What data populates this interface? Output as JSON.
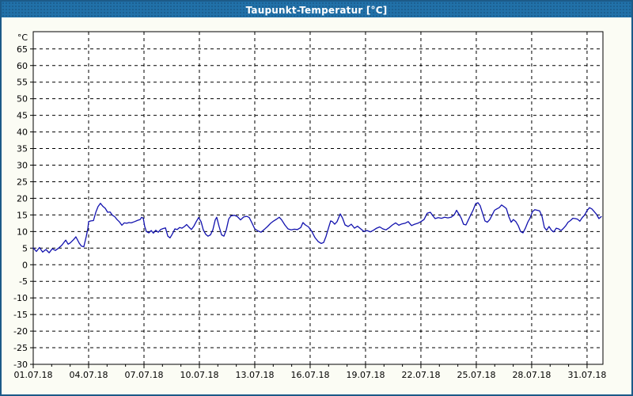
{
  "window": {
    "title": "Taupunkt-Temperatur [°C]",
    "title_bar_color": "#2171a9",
    "border_color": "#1c5a88",
    "background_color": "#fbfcf4",
    "plot_background": "#ffffff",
    "frame_color": "#000000",
    "grid_color": "#000000",
    "label_color": "#000000"
  },
  "chart_data": {
    "type": "line",
    "title": "Taupunkt-Temperatur [°C]",
    "ylabel": "°C",
    "grid": "dashed",
    "legend": "none",
    "ylim": [
      -30,
      70.2
    ],
    "y_ticks": [
      65,
      60,
      55,
      50,
      45,
      40,
      35,
      30,
      25,
      20,
      15,
      10,
      5,
      0,
      -5,
      -10,
      -15,
      -20,
      -25,
      -30
    ],
    "xlim_days": [
      1,
      31.86
    ],
    "x_tick_days": [
      1,
      4,
      7,
      10,
      13,
      16,
      19,
      22,
      25,
      28,
      31
    ],
    "x_tick_labels": [
      "01.07.18",
      "04.07.18",
      "07.07.18",
      "10.07.18",
      "13.07.18",
      "16.07.18",
      "19.07.18",
      "22.07.18",
      "25.07.18",
      "28.07.18",
      "31.07.18"
    ],
    "minor_tick_interval_days": 1,
    "series": [
      {
        "name": "Taupunkt-Temperatur",
        "color": "#1212ae",
        "points": [
          [
            1.0,
            5.1
          ],
          [
            1.17,
            4.0
          ],
          [
            1.34,
            5.2
          ],
          [
            1.51,
            3.8
          ],
          [
            1.69,
            4.6
          ],
          [
            1.86,
            3.6
          ],
          [
            2.03,
            4.8
          ],
          [
            2.2,
            4.3
          ],
          [
            2.37,
            5.0
          ],
          [
            2.54,
            5.8
          ],
          [
            2.76,
            7.4
          ],
          [
            2.89,
            6.2
          ],
          [
            3.01,
            6.6
          ],
          [
            3.19,
            7.6
          ],
          [
            3.31,
            8.4
          ],
          [
            3.49,
            6.5
          ],
          [
            3.61,
            5.6
          ],
          [
            3.74,
            5.4
          ],
          [
            3.87,
            8.5
          ],
          [
            3.96,
            11.0
          ],
          [
            4.0,
            13.0
          ],
          [
            4.13,
            13.2
          ],
          [
            4.26,
            13.3
          ],
          [
            4.39,
            15.8
          ],
          [
            4.51,
            17.5
          ],
          [
            4.64,
            18.5
          ],
          [
            4.77,
            17.6
          ],
          [
            4.9,
            17.0
          ],
          [
            5.03,
            15.8
          ],
          [
            5.16,
            15.9
          ],
          [
            5.29,
            14.9
          ],
          [
            5.41,
            14.5
          ],
          [
            5.54,
            13.6
          ],
          [
            5.67,
            12.9
          ],
          [
            5.8,
            11.9
          ],
          [
            5.93,
            12.6
          ],
          [
            6.06,
            12.5
          ],
          [
            6.19,
            12.7
          ],
          [
            6.31,
            12.6
          ],
          [
            6.49,
            13.0
          ],
          [
            6.66,
            13.4
          ],
          [
            6.79,
            13.6
          ],
          [
            6.87,
            14.3
          ],
          [
            6.96,
            14.0
          ],
          [
            7.04,
            11.5
          ],
          [
            7.13,
            10.0
          ],
          [
            7.26,
            9.6
          ],
          [
            7.39,
            10.3
          ],
          [
            7.51,
            9.5
          ],
          [
            7.64,
            10.4
          ],
          [
            7.77,
            9.8
          ],
          [
            7.9,
            10.6
          ],
          [
            8.03,
            10.9
          ],
          [
            8.16,
            11.1
          ],
          [
            8.29,
            8.6
          ],
          [
            8.41,
            8.1
          ],
          [
            8.54,
            9.3
          ],
          [
            8.67,
            10.8
          ],
          [
            8.8,
            10.6
          ],
          [
            8.93,
            11.2
          ],
          [
            9.06,
            11.0
          ],
          [
            9.19,
            11.5
          ],
          [
            9.31,
            12.1
          ],
          [
            9.44,
            11.3
          ],
          [
            9.57,
            10.6
          ],
          [
            9.7,
            11.6
          ],
          [
            9.83,
            13.0
          ],
          [
            9.96,
            14.2
          ],
          [
            10.09,
            13.0
          ],
          [
            10.21,
            10.5
          ],
          [
            10.34,
            9.2
          ],
          [
            10.47,
            8.6
          ],
          [
            10.6,
            9.0
          ],
          [
            10.73,
            10.5
          ],
          [
            10.86,
            13.5
          ],
          [
            10.94,
            14.3
          ],
          [
            11.07,
            11.5
          ],
          [
            11.2,
            9.0
          ],
          [
            11.33,
            8.6
          ],
          [
            11.46,
            10.5
          ],
          [
            11.59,
            13.8
          ],
          [
            11.71,
            14.7
          ],
          [
            11.89,
            14.9
          ],
          [
            12.06,
            14.5
          ],
          [
            12.23,
            13.5
          ],
          [
            12.4,
            14.4
          ],
          [
            12.57,
            14.6
          ],
          [
            12.7,
            14.2
          ],
          [
            12.83,
            12.8
          ],
          [
            13.0,
            10.8
          ],
          [
            13.17,
            10.2
          ],
          [
            13.34,
            9.8
          ],
          [
            13.51,
            10.6
          ],
          [
            13.69,
            11.5
          ],
          [
            13.86,
            12.5
          ],
          [
            14.03,
            13.2
          ],
          [
            14.2,
            13.8
          ],
          [
            14.33,
            14.3
          ],
          [
            14.46,
            13.5
          ],
          [
            14.63,
            12.0
          ],
          [
            14.8,
            10.8
          ],
          [
            14.97,
            10.5
          ],
          [
            15.14,
            10.7
          ],
          [
            15.31,
            10.6
          ],
          [
            15.49,
            11.2
          ],
          [
            15.61,
            12.7
          ],
          [
            15.74,
            12.0
          ],
          [
            15.91,
            11.4
          ],
          [
            16.09,
            10.0
          ],
          [
            16.26,
            8.2
          ],
          [
            16.43,
            7.0
          ],
          [
            16.6,
            6.4
          ],
          [
            16.73,
            6.7
          ],
          [
            16.86,
            8.5
          ],
          [
            16.99,
            11.0
          ],
          [
            17.11,
            13.2
          ],
          [
            17.2,
            13.0
          ],
          [
            17.33,
            12.2
          ],
          [
            17.46,
            13.0
          ],
          [
            17.63,
            15.3
          ],
          [
            17.76,
            14.0
          ],
          [
            17.89,
            12.0
          ],
          [
            18.06,
            11.5
          ],
          [
            18.23,
            12.2
          ],
          [
            18.4,
            11.0
          ],
          [
            18.57,
            11.6
          ],
          [
            18.74,
            10.8
          ],
          [
            18.91,
            10.0
          ],
          [
            19.09,
            10.3
          ],
          [
            19.26,
            9.9
          ],
          [
            19.43,
            10.4
          ],
          [
            19.6,
            11.0
          ],
          [
            19.77,
            11.4
          ],
          [
            19.94,
            10.8
          ],
          [
            20.11,
            10.5
          ],
          [
            20.29,
            11.2
          ],
          [
            20.46,
            12.0
          ],
          [
            20.63,
            12.6
          ],
          [
            20.8,
            11.9
          ],
          [
            20.97,
            12.3
          ],
          [
            21.14,
            12.5
          ],
          [
            21.31,
            13.0
          ],
          [
            21.49,
            11.8
          ],
          [
            21.66,
            12.2
          ],
          [
            21.83,
            12.5
          ],
          [
            22.0,
            13.0
          ],
          [
            22.17,
            13.6
          ],
          [
            22.34,
            15.5
          ],
          [
            22.51,
            15.8
          ],
          [
            22.64,
            14.8
          ],
          [
            22.77,
            13.9
          ],
          [
            22.94,
            14.2
          ],
          [
            23.11,
            14.0
          ],
          [
            23.29,
            14.3
          ],
          [
            23.46,
            14.1
          ],
          [
            23.63,
            14.3
          ],
          [
            23.8,
            15.0
          ],
          [
            23.93,
            16.4
          ],
          [
            24.06,
            15.2
          ],
          [
            24.19,
            14.0
          ],
          [
            24.31,
            12.2
          ],
          [
            24.44,
            12.0
          ],
          [
            24.57,
            13.5
          ],
          [
            24.7,
            15.0
          ],
          [
            24.83,
            16.5
          ],
          [
            24.96,
            18.3
          ],
          [
            25.09,
            18.7
          ],
          [
            25.21,
            17.8
          ],
          [
            25.34,
            15.5
          ],
          [
            25.47,
            13.2
          ],
          [
            25.6,
            12.8
          ],
          [
            25.73,
            13.6
          ],
          [
            25.86,
            15.0
          ],
          [
            25.99,
            16.4
          ],
          [
            26.11,
            16.8
          ],
          [
            26.24,
            17.2
          ],
          [
            26.37,
            18.0
          ],
          [
            26.5,
            17.5
          ],
          [
            26.63,
            16.9
          ],
          [
            26.76,
            14.5
          ],
          [
            26.89,
            12.8
          ],
          [
            27.01,
            13.6
          ],
          [
            27.14,
            13.0
          ],
          [
            27.27,
            11.8
          ],
          [
            27.4,
            10.0
          ],
          [
            27.53,
            9.6
          ],
          [
            27.66,
            11.0
          ],
          [
            27.79,
            12.8
          ],
          [
            27.91,
            14.0
          ],
          [
            28.04,
            16.0
          ],
          [
            28.17,
            16.6
          ],
          [
            28.3,
            16.4
          ],
          [
            28.43,
            16.2
          ],
          [
            28.56,
            14.6
          ],
          [
            28.69,
            11.2
          ],
          [
            28.81,
            10.4
          ],
          [
            28.94,
            11.5
          ],
          [
            29.07,
            10.4
          ],
          [
            29.2,
            9.9
          ],
          [
            29.33,
            11.0
          ],
          [
            29.46,
            10.8
          ],
          [
            29.59,
            10.3
          ],
          [
            29.71,
            10.9
          ],
          [
            29.84,
            11.7
          ],
          [
            29.97,
            12.8
          ],
          [
            30.1,
            13.3
          ],
          [
            30.23,
            14.0
          ],
          [
            30.36,
            13.9
          ],
          [
            30.49,
            13.7
          ],
          [
            30.61,
            13.1
          ],
          [
            30.74,
            14.2
          ],
          [
            30.87,
            15.0
          ],
          [
            31.0,
            16.3
          ],
          [
            31.13,
            17.2
          ],
          [
            31.26,
            16.8
          ],
          [
            31.39,
            16.0
          ],
          [
            31.51,
            15.2
          ],
          [
            31.64,
            13.9
          ],
          [
            31.77,
            14.5
          ]
        ]
      }
    ]
  }
}
